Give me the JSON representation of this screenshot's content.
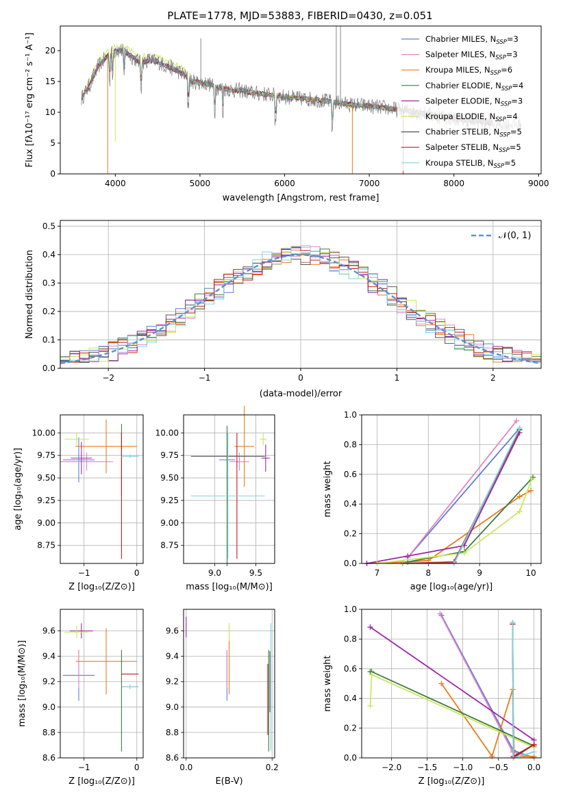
{
  "colors": [
    "#5b7fd0",
    "#e383c3",
    "#ea7a1a",
    "#3d7a3d",
    "#9b27a6",
    "#c7e85a",
    "#555555",
    "#c21b1b",
    "#79d6e3"
  ],
  "chart_data": [
    {
      "id": "spectrum",
      "type": "line",
      "title": "PLATE=1778, MJD=53883, FIBERID=0430, z=0.051",
      "xlabel": "wavelength [Angstrom, rest frame]",
      "ylabel": "Flux [fλ10⁻¹⁷ erg cm⁻² s⁻¹ A⁻¹]",
      "xlim": [
        3350,
        9030
      ],
      "ylim": [
        0,
        24
      ],
      "xticks": [
        4000,
        5000,
        6000,
        7000,
        8000,
        9000
      ],
      "yticks": [
        0,
        5,
        10,
        15,
        20
      ],
      "grid": false,
      "legend_position": "upper-right",
      "series": [
        {
          "name": "Chabrier MILES, N_SSP=3",
          "label_main": "Chabrier MILES, N",
          "label_sub": "SSP",
          "label_tail": "=3"
        },
        {
          "name": "Salpeter MILES, N_SSP=3",
          "label_main": "Salpeter MILES, N",
          "label_sub": "SSP",
          "label_tail": "=3"
        },
        {
          "name": "Kroupa MILES, N_SSP=6",
          "label_main": "Kroupa MILES, N",
          "label_sub": "SSP",
          "label_tail": "=6"
        },
        {
          "name": "Chabrier ELODIE, N_SSP=4",
          "label_main": "Chabrier ELODIE, N",
          "label_sub": "SSP",
          "label_tail": "=4"
        },
        {
          "name": "Salpeter ELODIE, N_SSP=3",
          "label_main": "Salpeter ELODIE, N",
          "label_sub": "SSP",
          "label_tail": "=3"
        },
        {
          "name": "Kroupa ELODIE, N_SSP=4",
          "label_main": "Kroupa ELODIE, N",
          "label_sub": "SSP",
          "label_tail": "=4"
        },
        {
          "name": "Chabrier STELIB, N_SSP=5",
          "label_main": "Chabrier STELIB, N",
          "label_sub": "SSP",
          "label_tail": "=5"
        },
        {
          "name": "Salpeter STELIB, N_SSP=5",
          "label_main": "Salpeter STELIB, N",
          "label_sub": "SSP",
          "label_tail": "=5"
        },
        {
          "name": "Kroupa STELIB, N_SSP=5",
          "label_main": "Kroupa STELIB, N",
          "label_sub": "SSP",
          "label_tail": "=5"
        }
      ],
      "continuum": [
        [
          3600,
          12.2
        ],
        [
          3700,
          14.5
        ],
        [
          3800,
          17.5
        ],
        [
          3900,
          19
        ],
        [
          4000,
          20
        ],
        [
          4100,
          20
        ],
        [
          4200,
          19
        ],
        [
          4300,
          18
        ],
        [
          4400,
          18.5
        ],
        [
          4500,
          18.2
        ],
        [
          4600,
          17.5
        ],
        [
          4700,
          17
        ],
        [
          4800,
          16.2
        ],
        [
          4900,
          15
        ],
        [
          5000,
          14.8
        ],
        [
          5100,
          14.6
        ],
        [
          5200,
          14
        ],
        [
          5300,
          13.8
        ],
        [
          5400,
          13.6
        ],
        [
          5500,
          13.5
        ],
        [
          5600,
          13.2
        ],
        [
          5700,
          13
        ],
        [
          5800,
          12.9
        ],
        [
          5900,
          12.7
        ],
        [
          6000,
          12.5
        ],
        [
          6200,
          12.2
        ],
        [
          6400,
          12
        ],
        [
          6600,
          11.6
        ],
        [
          6800,
          11.2
        ],
        [
          7000,
          11
        ],
        [
          7200,
          10.7
        ],
        [
          7400,
          10.3
        ],
        [
          7600,
          9.9
        ],
        [
          7800,
          9.4
        ],
        [
          8000,
          9
        ],
        [
          8200,
          8.6
        ],
        [
          8400,
          8.3
        ],
        [
          8600,
          8.1
        ],
        [
          8800,
          8.0
        ]
      ],
      "absorption_lines": [
        3934,
        3969,
        4102,
        4304,
        4861,
        5175,
        5270,
        5893,
        6563
      ],
      "emission_lines": [
        4959,
        5007,
        6563,
        6584
      ]
    },
    {
      "id": "residuals",
      "type": "line",
      "xlabel": "(data-model)/error",
      "ylabel": "Normed distribution",
      "xlim": [
        -2.5,
        2.5
      ],
      "ylim": [
        0,
        0.52
      ],
      "xticks": [
        -2,
        -1,
        0,
        1,
        2
      ],
      "yticks": [
        0.0,
        0.1,
        0.2,
        0.3,
        0.4,
        0.5
      ],
      "grid": true,
      "legend_position": "upper-right",
      "legend_label": "𝒩(0, 1)",
      "hist_bins": 50
    },
    {
      "id": "age-vs-Z",
      "type": "scatter",
      "xlabel": "Z [log₁₀(Z/Z⊙)]",
      "ylabel": "age  [log₁₀(age/yr)]",
      "xlim": [
        -1.45,
        0.12
      ],
      "ylim": [
        8.55,
        10.2
      ],
      "xticks": [
        -1,
        0
      ],
      "yticks": [
        8.75,
        9.0,
        9.25,
        9.5,
        9.75,
        10.0
      ],
      "grid": true,
      "points": [
        {
          "x": -1.1,
          "y": 9.7,
          "xerr": 0.3,
          "yerr": 0.25,
          "color": 0
        },
        {
          "x": -0.95,
          "y": 9.68,
          "xerr": 0.5,
          "yerr": 0.1,
          "color": 1
        },
        {
          "x": -0.58,
          "y": 9.85,
          "xerr": 0.58,
          "yerr": 0.3,
          "color": 2
        },
        {
          "x": -0.29,
          "y": 9.7,
          "xerr": 0.0,
          "yerr": 0.4,
          "color": 3
        },
        {
          "x": -1.05,
          "y": 9.72,
          "xerr": 0.2,
          "yerr": 0.18,
          "color": 4
        },
        {
          "x": -1.14,
          "y": 9.93,
          "xerr": 0.23,
          "yerr": 0.07,
          "color": 5
        },
        {
          "x": -0.13,
          "y": 9.74,
          "xerr": 0.16,
          "yerr": 0.0,
          "color": 6
        },
        {
          "x": -0.29,
          "y": 9.3,
          "xerr": 0.0,
          "yerr": 0.7,
          "color": 7
        },
        {
          "x": -0.13,
          "y": 9.74,
          "xerr": 0.16,
          "yerr": 0.02,
          "color": 8
        }
      ]
    },
    {
      "id": "age-vs-mass",
      "type": "scatter",
      "xlabel": "mass [log₁₀(M/M⊙)]",
      "ylabel": "",
      "xlim": [
        8.62,
        9.73
      ],
      "ylim": [
        8.55,
        10.2
      ],
      "xticks": [
        9.0,
        9.5
      ],
      "yticks": [
        8.75,
        9.0,
        9.25,
        9.5,
        9.75,
        10.0
      ],
      "grid": true,
      "points": [
        {
          "x": 9.15,
          "y": 9.7,
          "xerr": 0.1,
          "yerr": 0.3,
          "color": 0
        },
        {
          "x": 9.3,
          "y": 9.68,
          "xerr": 0.12,
          "yerr": 0.1,
          "color": 1
        },
        {
          "x": 9.36,
          "y": 9.85,
          "xerr": 0.12,
          "yerr": 0.45,
          "color": 2
        },
        {
          "x": 9.15,
          "y": 9.3,
          "xerr": 0.0,
          "yerr": 0.78,
          "color": 3
        },
        {
          "x": 9.62,
          "y": 9.72,
          "xerr": 0.05,
          "yerr": 0.15,
          "color": 4
        },
        {
          "x": 9.59,
          "y": 9.93,
          "xerr": 0.04,
          "yerr": 0.07,
          "color": 5
        },
        {
          "x": 9.16,
          "y": 9.74,
          "xerr": 0.45,
          "yerr": 0.0,
          "color": 6
        },
        {
          "x": 9.27,
          "y": 9.3,
          "xerr": 0.0,
          "yerr": 0.7,
          "color": 7
        },
        {
          "x": 9.16,
          "y": 9.3,
          "xerr": 0.45,
          "yerr": 0.7,
          "color": 8
        }
      ]
    },
    {
      "id": "mass-weight-vs-age",
      "type": "line",
      "xlabel": "age  [log₁₀(age/yr)]",
      "ylabel": "mass weight",
      "xlim": [
        6.7,
        10.2
      ],
      "ylim": [
        0,
        1.0
      ],
      "xticks": [
        7,
        8,
        9,
        10
      ],
      "yticks": [
        0.0,
        0.2,
        0.4,
        0.6,
        0.8,
        1.0
      ],
      "grid": true,
      "series": [
        {
          "x": [
            7.6,
            9.78
          ],
          "y": [
            0.04,
            0.91
          ],
          "color": 0
        },
        {
          "x": [
            7.6,
            9.72
          ],
          "y": [
            0.04,
            0.96
          ],
          "color": 1
        },
        {
          "x": [
            6.8,
            7.6,
            8.0,
            9.78,
            10.0
          ],
          "y": [
            0.0,
            0.01,
            0.02,
            0.45,
            0.49
          ],
          "color": 2
        },
        {
          "x": [
            7.6,
            8.7,
            10.04
          ],
          "y": [
            0.01,
            0.08,
            0.58
          ],
          "color": 3
        },
        {
          "x": [
            6.8,
            7.6,
            8.7,
            9.78
          ],
          "y": [
            0.0,
            0.05,
            0.12,
            0.88
          ],
          "color": 4
        },
        {
          "x": [
            7.0,
            8.7,
            9.78,
            10.02
          ],
          "y": [
            0.0,
            0.07,
            0.35,
            0.57
          ],
          "color": 5
        },
        {
          "x": [
            7.5,
            8.5,
            9.78
          ],
          "y": [
            0.0,
            0.0,
            0.9
          ],
          "color": 6
        },
        {
          "x": [
            7.5,
            8.5,
            9.78
          ],
          "y": [
            0.0,
            0.01,
            0.9
          ],
          "color": 7
        },
        {
          "x": [
            7.5,
            8.5,
            9.78
          ],
          "y": [
            0.0,
            0.0,
            0.91
          ],
          "color": 8
        }
      ]
    },
    {
      "id": "mass-vs-Z",
      "type": "scatter",
      "xlabel": "Z [log₁₀(Z/Z⊙)]",
      "ylabel": "mass [log₁₀(M/M⊙)]",
      "xlim": [
        -1.45,
        0.12
      ],
      "ylim": [
        8.6,
        9.77
      ],
      "xticks": [
        -1,
        0
      ],
      "yticks": [
        8.6,
        8.8,
        9.0,
        9.2,
        9.4,
        9.6
      ],
      "grid": true,
      "points": [
        {
          "x": -1.1,
          "y": 9.25,
          "xerr": 0.3,
          "yerr": 0.2,
          "color": 0
        },
        {
          "x": -1.1,
          "y": 9.3,
          "xerr": 0.0,
          "yerr": 0.15,
          "color": 1
        },
        {
          "x": -0.58,
          "y": 9.36,
          "xerr": 0.58,
          "yerr": 0.26,
          "color": 2
        },
        {
          "x": -0.29,
          "y": 9.05,
          "xerr": 0.0,
          "yerr": 0.4,
          "color": 3
        },
        {
          "x": -1.05,
          "y": 9.6,
          "xerr": 0.22,
          "yerr": 0.06,
          "color": 4
        },
        {
          "x": -1.14,
          "y": 9.59,
          "xerr": 0.23,
          "yerr": 0.05,
          "color": 5
        },
        {
          "x": -0.13,
          "y": 9.16,
          "xerr": 0.16,
          "yerr": 0.0,
          "color": 6
        },
        {
          "x": -0.13,
          "y": 9.26,
          "xerr": 0.16,
          "yerr": 0.0,
          "color": 7
        },
        {
          "x": -0.13,
          "y": 9.16,
          "xerr": 0.16,
          "yerr": 0.02,
          "color": 8
        }
      ]
    },
    {
      "id": "mass-vs-ebv",
      "type": "scatter",
      "xlabel": "E(B-V)",
      "ylabel": "",
      "xlim": [
        -0.006,
        0.206
      ],
      "ylim": [
        8.6,
        9.77
      ],
      "xticks": [
        0.0,
        0.2
      ],
      "yticks": [
        8.6,
        8.8,
        9.0,
        9.2,
        9.4,
        9.6
      ],
      "grid": true,
      "points": [
        {
          "x": 0.095,
          "y": 9.25,
          "xerr": 0.0,
          "yerr": 0.2,
          "color": 0
        },
        {
          "x": 0.095,
          "y": 9.3,
          "xerr": 0.0,
          "yerr": 0.15,
          "color": 1
        },
        {
          "x": 0.1,
          "y": 9.36,
          "xerr": 0.0,
          "yerr": 0.26,
          "color": 2
        },
        {
          "x": 0.192,
          "y": 9.05,
          "xerr": 0.0,
          "yerr": 0.4,
          "color": 3
        },
        {
          "x": 0.0,
          "y": 9.63,
          "xerr": 0.0,
          "yerr": 0.08,
          "color": 4
        },
        {
          "x": 0.1,
          "y": 9.59,
          "xerr": 0.0,
          "yerr": 0.07,
          "color": 5
        },
        {
          "x": 0.195,
          "y": 9.2,
          "xerr": 0.0,
          "yerr": 0.24,
          "color": 6
        },
        {
          "x": 0.19,
          "y": 9.06,
          "xerr": 0.0,
          "yerr": 0.28,
          "color": 7
        },
        {
          "x": 0.197,
          "y": 9.16,
          "xerr": 0.0,
          "yerr": 0.5,
          "color": 8
        }
      ]
    },
    {
      "id": "mass-weight-vs-Z",
      "type": "line",
      "xlabel": "Z [log₁₀(Z/Z⊙)]",
      "ylabel": "mass weight",
      "xlim": [
        -2.42,
        0.1
      ],
      "ylim": [
        0,
        1.0
      ],
      "xticks": [
        -2.0,
        -1.5,
        -1.0,
        -0.5,
        0.0
      ],
      "yticks": [
        0.0,
        0.2,
        0.4,
        0.6,
        0.8,
        1.0
      ],
      "grid": true,
      "series": [
        {
          "x": [
            -1.3,
            -0.29,
            0.0
          ],
          "y": [
            0.96,
            0.05,
            0.0
          ],
          "color": 0
        },
        {
          "x": [
            -1.32,
            -0.3,
            0.0
          ],
          "y": [
            0.97,
            0.04,
            0.0
          ],
          "color": 1
        },
        {
          "x": [
            -1.3,
            -0.59,
            -0.3,
            -0.28,
            0.0
          ],
          "y": [
            0.5,
            0.01,
            0.46,
            0.01,
            0.01
          ],
          "color": 2
        },
        {
          "x": [
            -2.3,
            -2.28,
            0.0
          ],
          "y": [
            0.58,
            0.58,
            0.08
          ],
          "color": 3
        },
        {
          "x": [
            -2.3,
            0.0
          ],
          "y": [
            0.88,
            0.12
          ],
          "color": 4
        },
        {
          "x": [
            -2.3,
            -2.28,
            0.0
          ],
          "y": [
            0.35,
            0.56,
            0.07
          ],
          "color": 5
        },
        {
          "x": [
            -0.3,
            -0.29,
            0.0
          ],
          "y": [
            0.91,
            0.0,
            0.09
          ],
          "color": 6
        },
        {
          "x": [
            -0.3,
            -0.29,
            0.0
          ],
          "y": [
            0.9,
            0.01,
            0.09
          ],
          "color": 7
        },
        {
          "x": [
            -0.3,
            -0.29,
            0.0
          ],
          "y": [
            0.91,
            0.0,
            0.04
          ],
          "color": 8
        }
      ]
    }
  ]
}
